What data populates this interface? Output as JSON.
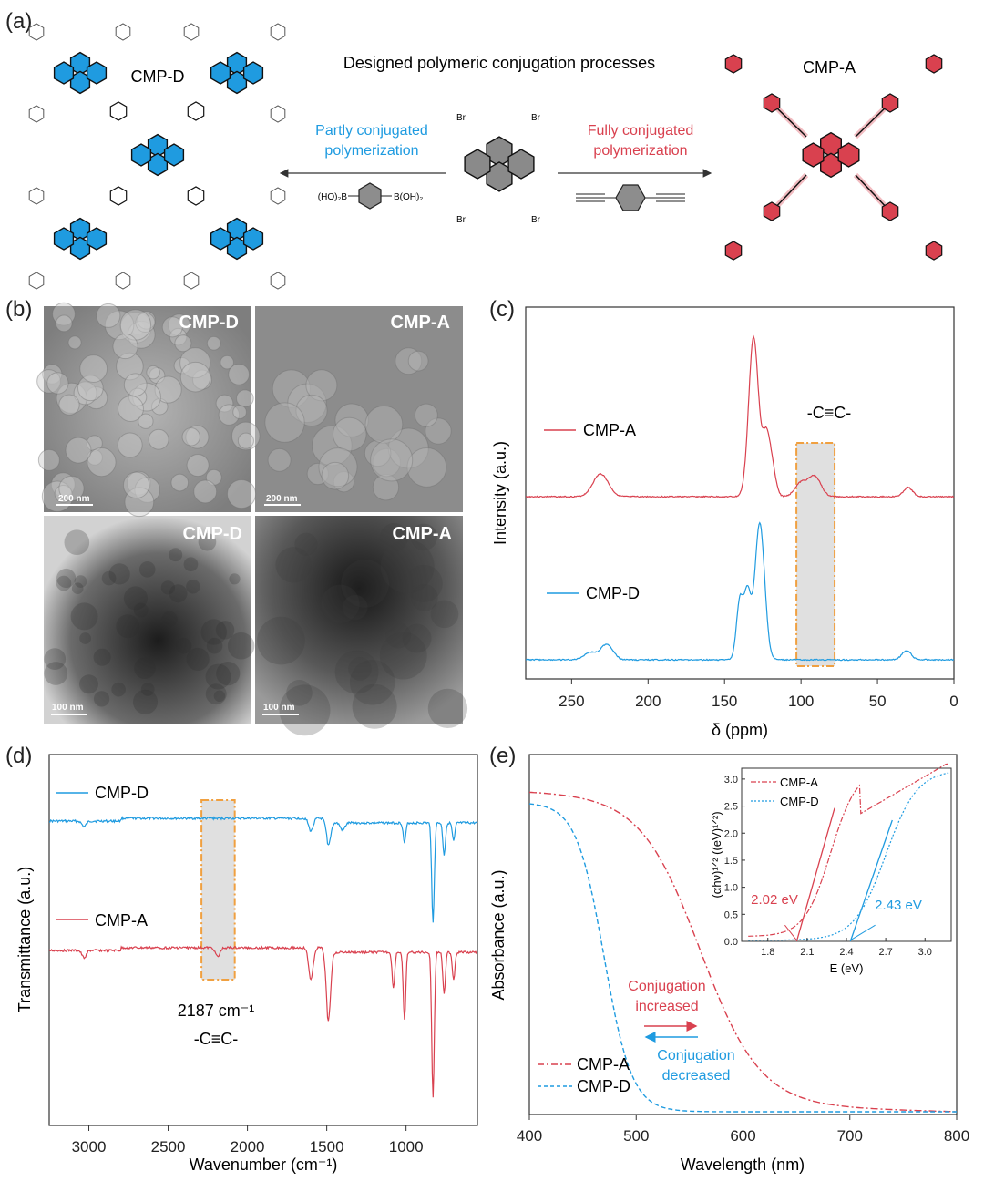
{
  "panel_labels": [
    "(a)",
    "(b)",
    "(c)",
    "(d)",
    "(e)"
  ],
  "panel_a": {
    "title": "Designed polymeric conjugation processes",
    "left_product": "CMP-D",
    "right_product": "CMP-A",
    "left_arrow_label_line1": "Partly conjugated",
    "left_arrow_label_line2": "polymerization",
    "right_arrow_label_line1": "Fully conjugated",
    "right_arrow_label_line2": "polymerization",
    "monomer_substituent": "Br",
    "left_reagent_left": "(HO)₂B",
    "left_reagent_right": "B(OH)₂",
    "colors": {
      "cmp_d": "#1f9be0",
      "cmp_a": "#d9414f",
      "pyrene_core": "#8a8a8a"
    }
  },
  "panel_b": {
    "tiles": [
      {
        "label": "CMP-D",
        "scale": "200 nm",
        "kind": "SEM"
      },
      {
        "label": "CMP-A",
        "scale": "200 nm",
        "kind": "SEM"
      },
      {
        "label": "CMP-D",
        "scale": "100 nm",
        "kind": "TEM"
      },
      {
        "label": "CMP-A",
        "scale": "100 nm",
        "kind": "TEM"
      }
    ]
  },
  "chart_data": [
    {
      "panel": "c",
      "type": "line",
      "xlabel": "δ (ppm)",
      "ylabel": "Intensity (a.u.)",
      "xlim": [
        280,
        0
      ],
      "xticks": [
        250,
        200,
        150,
        100,
        50,
        0
      ],
      "x_reversed": true,
      "annotation": "-C≡C-",
      "highlight_range": [
        78,
        103
      ],
      "series": [
        {
          "name": "CMP-A",
          "color": "#d9414f",
          "peaks": [
            [
              231,
              25
            ],
            [
              131,
              175
            ],
            [
              123,
              60
            ],
            [
              119,
              30
            ],
            [
              100,
              15
            ],
            [
              91,
              22
            ],
            [
              30,
              10
            ]
          ]
        },
        {
          "name": "CMP-D",
          "color": "#1f9be0",
          "peaks": [
            [
              238,
              8
            ],
            [
              227,
              17
            ],
            [
              140,
              65
            ],
            [
              135,
              70
            ],
            [
              127,
              150
            ],
            [
              31,
              10
            ]
          ]
        }
      ]
    },
    {
      "panel": "d",
      "type": "line",
      "xlabel": "Wavenumber (cm⁻¹)",
      "ylabel": "Transmittance (a.u.)",
      "xlim": [
        3250,
        550
      ],
      "xticks": [
        3000,
        2500,
        2000,
        1500,
        1000
      ],
      "x_reversed": true,
      "annotation_value": "2187 cm⁻¹",
      "annotation": "-C≡C-",
      "highlight_range": [
        2080,
        2290
      ],
      "series": [
        {
          "name": "CMP-D",
          "color": "#1f9be0",
          "dips": [
            [
              3030,
              6
            ],
            [
              1600,
              14
            ],
            [
              1490,
              25
            ],
            [
              1400,
              8
            ],
            [
              1010,
              22
            ],
            [
              830,
              110
            ],
            [
              760,
              35
            ],
            [
              700,
              20
            ]
          ]
        },
        {
          "name": "CMP-A",
          "color": "#d9414f",
          "dips": [
            [
              3030,
              8
            ],
            [
              2187,
              10
            ],
            [
              1600,
              35
            ],
            [
              1490,
              75
            ],
            [
              1080,
              40
            ],
            [
              1010,
              75
            ],
            [
              830,
              160
            ],
            [
              760,
              45
            ],
            [
              700,
              30
            ]
          ]
        }
      ]
    },
    {
      "panel": "e",
      "type": "line",
      "xlabel": "Wavelength (nm)",
      "ylabel": "Absorbance (a.u.)",
      "xlim": [
        400,
        800
      ],
      "xticks": [
        400,
        500,
        600,
        700,
        800
      ],
      "series": [
        {
          "name": "CMP-A",
          "style": "dash-dot",
          "color": "#d9414f",
          "edge_nm": 560,
          "width_nm": 28
        },
        {
          "name": "CMP-D",
          "style": "dashed",
          "color": "#1f9be0",
          "edge_nm": 470,
          "width_nm": 13
        }
      ],
      "annotations": {
        "increased_line1": "Conjugation",
        "increased_line2": "increased",
        "decreased_line1": "Conjugation",
        "decreased_line2": "decreased"
      },
      "inset": {
        "type": "line",
        "xlabel": "E (eV)",
        "ylabel": "(αhν)¹ᐟ² ((eV)¹ᐟ²)",
        "xlim": [
          1.6,
          3.2
        ],
        "ylim": [
          0,
          3.2
        ],
        "xticks": [
          "1.8",
          "2.1",
          "2.4",
          "2.7",
          "3.0"
        ],
        "yticks": [
          "0.0",
          "0.5",
          "1.0",
          "1.5",
          "2.0",
          "2.5",
          "3.0"
        ],
        "band_gaps": [
          {
            "name": "CMP-A",
            "value": "2.02 eV",
            "ev": 2.02,
            "color": "#d9414f"
          },
          {
            "name": "CMP-D",
            "value": "2.43 eV",
            "ev": 2.43,
            "color": "#1f9be0"
          }
        ]
      }
    }
  ]
}
